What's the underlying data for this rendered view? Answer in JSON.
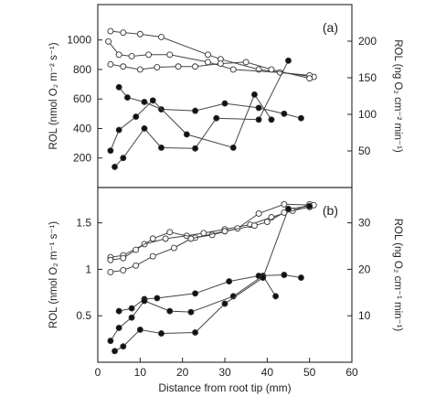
{
  "chart_data": [
    {
      "type": "line",
      "panel_label": "(a)",
      "ylabel": "ROL (nmol O₂ m⁻² s⁻¹)",
      "ylabel_right": "ROL (ng O₂ cm⁻² min⁻¹)",
      "xlim": [
        0,
        60
      ],
      "ylim": [
        0,
        1240
      ],
      "yticks": [
        200,
        400,
        600,
        800,
        1000
      ],
      "yticks_right": [
        {
          "label": "50",
          "at": 248
        },
        {
          "label": "100",
          "at": 496
        },
        {
          "label": "150",
          "at": 744
        },
        {
          "label": "200",
          "at": 992
        }
      ],
      "series": [
        {
          "marker": "open",
          "x": [
            3,
            6,
            10,
            15,
            26,
            29,
            38,
            51
          ],
          "y": [
            1060,
            1050,
            1040,
            1020,
            900,
            870,
            800,
            750
          ]
        },
        {
          "marker": "open",
          "x": [
            2.5,
            5,
            8,
            12,
            17,
            26,
            32,
            43,
            50
          ],
          "y": [
            990,
            900,
            890,
            900,
            900,
            850,
            800,
            780,
            760
          ]
        },
        {
          "marker": "open",
          "x": [
            3,
            6,
            10,
            14,
            19,
            23,
            29,
            35,
            41,
            50
          ],
          "y": [
            835,
            820,
            800,
            815,
            820,
            820,
            840,
            850,
            800,
            740
          ]
        },
        {
          "marker": "filled",
          "x": [
            5,
            7,
            11,
            15,
            23,
            30,
            38,
            44,
            48
          ],
          "y": [
            680,
            610,
            580,
            530,
            520,
            570,
            540,
            500,
            470
          ]
        },
        {
          "marker": "filled",
          "x": [
            3,
            5,
            9,
            13,
            21,
            32,
            37,
            41
          ],
          "y": [
            250,
            390,
            480,
            590,
            360,
            270,
            630,
            460
          ]
        },
        {
          "marker": "filled",
          "x": [
            4,
            6,
            11,
            15,
            23,
            28,
            38,
            45
          ],
          "y": [
            140,
            200,
            400,
            270,
            265,
            470,
            460,
            860
          ]
        }
      ]
    },
    {
      "type": "line",
      "panel_label": "(b)",
      "ylabel": "ROL (nmol O₂ m⁻¹ s⁻¹)",
      "ylabel_right": "ROL (ng O₂ cm⁻¹ min⁻¹)",
      "xlabel": "Distance from root tip (mm)",
      "xlim": [
        0,
        60
      ],
      "xticks": [
        0,
        10,
        20,
        30,
        40,
        50,
        60
      ],
      "ylim": [
        0,
        1.88
      ],
      "yticks": [
        0.5,
        1.0,
        1.5
      ],
      "yticks_right": [
        {
          "label": "10",
          "at": 0.5
        },
        {
          "label": "20",
          "at": 1.0
        },
        {
          "label": "30",
          "at": 1.5
        }
      ],
      "series": [
        {
          "marker": "open",
          "x": [
            3,
            6,
            11,
            16,
            21,
            25,
            30,
            36,
            41,
            46,
            50
          ],
          "y": [
            1.13,
            1.15,
            1.27,
            1.33,
            1.36,
            1.39,
            1.43,
            1.48,
            1.56,
            1.63,
            1.7
          ]
        },
        {
          "marker": "open",
          "x": [
            3,
            6,
            9,
            13,
            17,
            23,
            27,
            33,
            38,
            44,
            51
          ],
          "y": [
            1.1,
            1.12,
            1.21,
            1.33,
            1.4,
            1.34,
            1.37,
            1.44,
            1.6,
            1.7,
            1.69
          ]
        },
        {
          "marker": "open",
          "x": [
            3,
            6,
            9,
            13,
            18,
            22,
            30,
            37,
            40,
            44,
            50
          ],
          "y": [
            0.97,
            0.99,
            1.04,
            1.14,
            1.23,
            1.33,
            1.41,
            1.47,
            1.51,
            1.61,
            1.67
          ]
        },
        {
          "marker": "filled",
          "x": [
            5,
            8,
            11,
            14,
            23,
            31,
            38,
            44,
            48
          ],
          "y": [
            0.55,
            0.58,
            0.68,
            0.69,
            0.74,
            0.87,
            0.93,
            0.94,
            0.91
          ]
        },
        {
          "marker": "filled",
          "x": [
            3,
            5,
            8,
            11,
            17,
            22,
            32,
            39,
            42
          ],
          "y": [
            0.23,
            0.37,
            0.48,
            0.66,
            0.55,
            0.54,
            0.71,
            0.93,
            0.71
          ]
        },
        {
          "marker": "filled",
          "x": [
            4,
            6,
            10,
            15,
            23,
            30,
            39,
            45,
            50
          ],
          "y": [
            0.12,
            0.17,
            0.35,
            0.31,
            0.32,
            0.63,
            0.91,
            1.65,
            1.68
          ]
        }
      ]
    }
  ]
}
